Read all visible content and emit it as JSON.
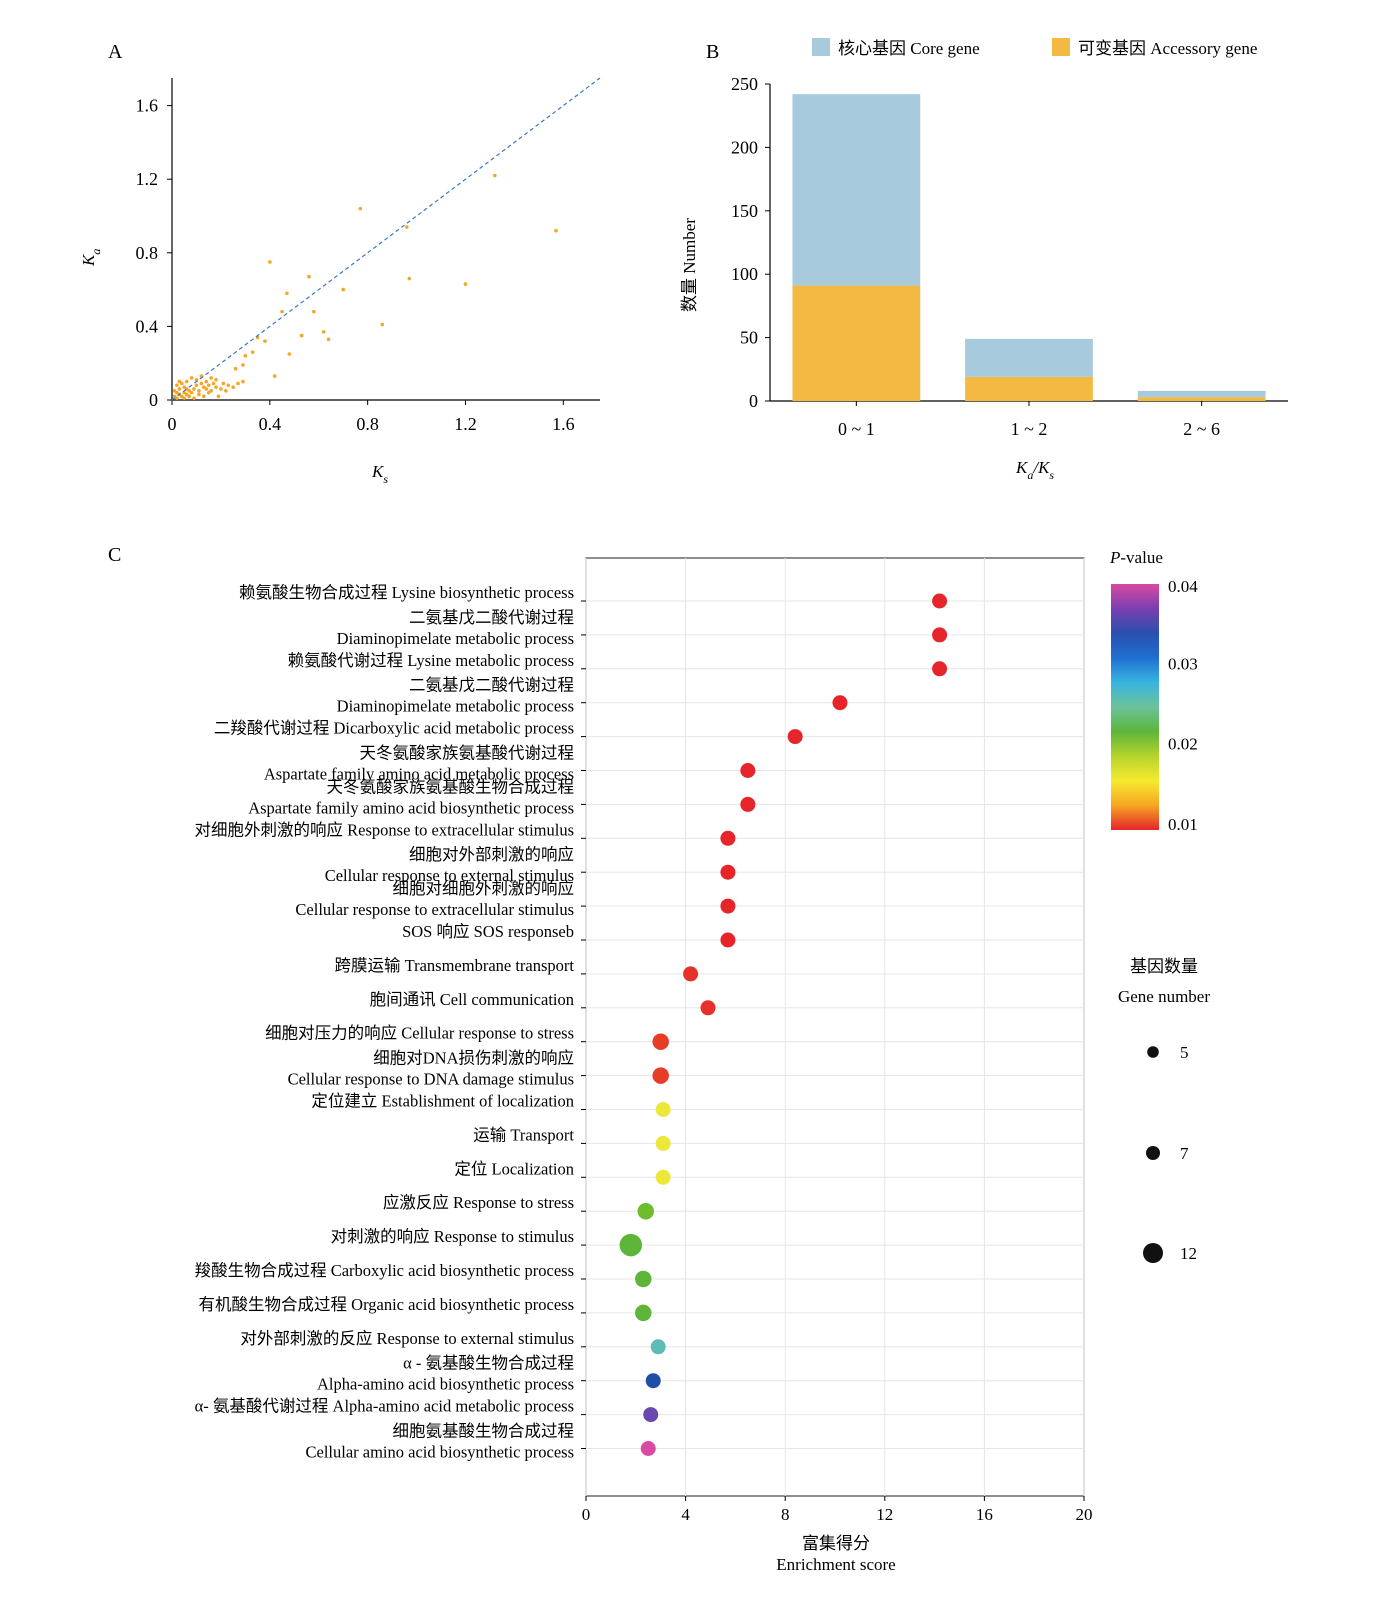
{
  "panels": {
    "a": "A",
    "b": "B",
    "c": "C"
  },
  "chart_data": [
    {
      "id": "A",
      "type": "scatter",
      "xlabel": "K",
      "xlabel_sub": "s",
      "ylabel": "K",
      "ylabel_sub": "a",
      "xlim": [
        0,
        1.75
      ],
      "ylim": [
        0,
        1.75
      ],
      "xticks": [
        "0",
        "0.4",
        "0.8",
        "1.2",
        "1.6"
      ],
      "xtick_values": [
        0,
        0.4,
        0.8,
        1.2,
        1.6
      ],
      "yticks": [
        "0",
        "0.4",
        "0.8",
        "1.2",
        "1.6"
      ],
      "ytick_values": [
        0,
        0.4,
        0.8,
        1.2,
        1.6
      ],
      "point_color": "#f5a623",
      "line_color": "#3a78c2",
      "reference_line": "y = x",
      "points": [
        [
          0.01,
          0.02
        ],
        [
          0.02,
          0.01
        ],
        [
          0.03,
          0.03
        ],
        [
          0.04,
          0.02
        ],
        [
          0.05,
          0.04
        ],
        [
          0.06,
          0.03
        ],
        [
          0.07,
          0.05
        ],
        [
          0.02,
          0.04
        ],
        [
          0.03,
          0.06
        ],
        [
          0.05,
          0.07
        ],
        [
          0.08,
          0.04
        ],
        [
          0.09,
          0.06
        ],
        [
          0.1,
          0.08
        ],
        [
          0.11,
          0.05
        ],
        [
          0.12,
          0.09
        ],
        [
          0.13,
          0.07
        ],
        [
          0.14,
          0.1
        ],
        [
          0.15,
          0.08
        ],
        [
          0.16,
          0.12
        ],
        [
          0.17,
          0.09
        ],
        [
          0.18,
          0.11
        ],
        [
          0.04,
          0.09
        ],
        [
          0.06,
          0.1
        ],
        [
          0.08,
          0.12
        ],
        [
          0.1,
          0.11
        ],
        [
          0.12,
          0.13
        ],
        [
          0.07,
          0.02
        ],
        [
          0.09,
          0.01
        ],
        [
          0.11,
          0.03
        ],
        [
          0.13,
          0.02
        ],
        [
          0.15,
          0.04
        ],
        [
          0.01,
          0.05
        ],
        [
          0.02,
          0.08
        ],
        [
          0.03,
          0.1
        ],
        [
          0.05,
          0.01
        ],
        [
          0.06,
          0.06
        ],
        [
          0.14,
          0.06
        ],
        [
          0.16,
          0.05
        ],
        [
          0.18,
          0.07
        ],
        [
          0.2,
          0.06
        ],
        [
          0.22,
          0.05
        ],
        [
          0.19,
          0.02
        ],
        [
          0.21,
          0.09
        ],
        [
          0.23,
          0.08
        ],
        [
          0.25,
          0.07
        ],
        [
          0.27,
          0.09
        ],
        [
          0.29,
          0.1
        ],
        [
          0.26,
          0.17
        ],
        [
          0.29,
          0.19
        ],
        [
          0.3,
          0.24
        ],
        [
          0.33,
          0.26
        ],
        [
          0.35,
          0.34
        ],
        [
          0.38,
          0.32
        ],
        [
          0.42,
          0.13
        ],
        [
          0.45,
          0.48
        ],
        [
          0.47,
          0.58
        ],
        [
          0.48,
          0.25
        ],
        [
          0.4,
          0.75
        ],
        [
          0.53,
          0.35
        ],
        [
          0.56,
          0.67
        ],
        [
          0.58,
          0.48
        ],
        [
          0.62,
          0.37
        ],
        [
          0.64,
          0.33
        ],
        [
          0.7,
          0.6
        ],
        [
          0.77,
          1.04
        ],
        [
          0.86,
          0.41
        ],
        [
          0.96,
          0.94
        ],
        [
          0.97,
          0.66
        ],
        [
          1.2,
          0.63
        ],
        [
          1.32,
          1.22
        ],
        [
          1.57,
          0.92
        ]
      ]
    },
    {
      "id": "B",
      "type": "bar",
      "stacked": true,
      "categories": [
        "0 ~ 1",
        "1 ~ 2",
        "2 ~ 6"
      ],
      "series": [
        {
          "name": "可变基因 Accessory gene",
          "color": "#f4b942",
          "values": [
            91,
            19,
            3
          ]
        },
        {
          "name": "核心基因 Core gene",
          "color": "#a7cbdd",
          "values": [
            151,
            30,
            5
          ]
        }
      ],
      "legend_order": [
        1,
        0
      ],
      "legend_position": "top",
      "ylim": [
        0,
        250
      ],
      "yticks": [
        "0",
        "50",
        "100",
        "150",
        "200",
        "250"
      ],
      "ytick_values": [
        0,
        50,
        100,
        150,
        200,
        250
      ],
      "xlabel": "K",
      "xlabel_sub1": "a",
      "xlabel_mid": "/K",
      "xlabel_sub2": "s",
      "ylabel": "数量 Number"
    },
    {
      "id": "C",
      "type": "scatter",
      "subtype": "bubble",
      "xlim": [
        0,
        20
      ],
      "xticks": [
        "0",
        "4",
        "8",
        "12",
        "16",
        "20"
      ],
      "xtick_values": [
        0,
        4,
        8,
        12,
        16,
        20
      ],
      "xlabel_zh": "富集得分",
      "xlabel_en": "Enrichment score",
      "grid": true,
      "terms": [
        {
          "label": [
            "赖氨酸生物合成过程 Lysine biosynthetic process"
          ],
          "x": 14.2,
          "color": "#e5252a",
          "size": 7
        },
        {
          "label": [
            "二氨基戊二酸代谢过程",
            "Diaminopimelate metabolic process"
          ],
          "x": 14.2,
          "color": "#e5252a",
          "size": 7
        },
        {
          "label": [
            "赖氨酸代谢过程 Lysine metabolic process"
          ],
          "x": 14.2,
          "color": "#e5252a",
          "size": 7
        },
        {
          "label": [
            "二氨基戊二酸代谢过程",
            "Diaminopimelate metabolic process"
          ],
          "x": 10.2,
          "color": "#e5252a",
          "size": 7
        },
        {
          "label": [
            "二羧酸代谢过程 Dicarboxylic acid metabolic process"
          ],
          "x": 8.4,
          "color": "#e5252a",
          "size": 7
        },
        {
          "label": [
            "天冬氨酸家族氨基酸代谢过程",
            "Aspartate family amino acid metabolic process"
          ],
          "x": 6.5,
          "color": "#e5252a",
          "size": 7
        },
        {
          "label": [
            "天冬氨酸家族氨基酸生物合成过程",
            "Aspartate family amino acid biosynthetic process"
          ],
          "x": 6.5,
          "color": "#e5252a",
          "size": 7
        },
        {
          "label": [
            "对细胞外刺激的响应 Response to extracellular stimulus"
          ],
          "x": 5.7,
          "color": "#e5252a",
          "size": 7
        },
        {
          "label": [
            "细胞对外部刺激的响应",
            "Cellular response to external stimulus"
          ],
          "x": 5.7,
          "color": "#e5252a",
          "size": 7
        },
        {
          "label": [
            "细胞对细胞外刺激的响应",
            "Cellular response to extracellular stimulus"
          ],
          "x": 5.7,
          "color": "#e5252a",
          "size": 7
        },
        {
          "label": [
            "SOS 响应 SOS responseb"
          ],
          "x": 5.7,
          "color": "#e5252a",
          "size": 7
        },
        {
          "label": [
            "跨膜运输 Transmembrane transport"
          ],
          "x": 4.2,
          "color": "#e6302a",
          "size": 7
        },
        {
          "label": [
            "胞间通讯 Cell communication"
          ],
          "x": 4.9,
          "color": "#e6302a",
          "size": 7
        },
        {
          "label": [
            "细胞对压力的响应 Cellular response to stress"
          ],
          "x": 3.0,
          "color": "#e73c25",
          "size": 8
        },
        {
          "label": [
            "细胞对DNA损伤刺激的响应",
            "Cellular response to DNA damage stimulus"
          ],
          "x": 3.0,
          "color": "#e73c25",
          "size": 8
        },
        {
          "label": [
            "定位建立 Establishment of localization"
          ],
          "x": 3.1,
          "color": "#ece83a",
          "size": 7
        },
        {
          "label": [
            "运输 Transport"
          ],
          "x": 3.1,
          "color": "#ece83a",
          "size": 7
        },
        {
          "label": [
            "定位 Localization"
          ],
          "x": 3.1,
          "color": "#ece83a",
          "size": 7
        },
        {
          "label": [
            "应激反应 Response to stress"
          ],
          "x": 2.4,
          "color": "#6dbd2e",
          "size": 8
        },
        {
          "label": [
            "对刺激的响应 Response to stimulus"
          ],
          "x": 1.8,
          "color": "#5db63a",
          "size": 12
        },
        {
          "label": [
            "羧酸生物合成过程 Carboxylic acid biosynthetic process"
          ],
          "x": 2.3,
          "color": "#5db63a",
          "size": 8
        },
        {
          "label": [
            "有机酸生物合成过程 Organic acid biosynthetic process"
          ],
          "x": 2.3,
          "color": "#5db63a",
          "size": 8
        },
        {
          "label": [
            "对外部刺激的反应 Response to external stimulus"
          ],
          "x": 2.9,
          "color": "#5bbdb5",
          "size": 7
        },
        {
          "label": [
            "α - 氨基酸生物合成过程",
            "Alpha-amino acid biosynthetic process"
          ],
          "x": 2.7,
          "color": "#1f4ea6",
          "size": 7
        },
        {
          "label": [
            "α- 氨基酸代谢过程 Alpha-amino acid metabolic process"
          ],
          "x": 2.6,
          "color": "#6a48b2",
          "size": 7
        },
        {
          "label": [
            "细胞氨基酸生物合成过程",
            "Cellular amino acid biosynthetic process"
          ],
          "x": 2.5,
          "color": "#d94aa2",
          "size": 7
        }
      ],
      "colorbar": {
        "title": "P",
        "title_suffix": "-value",
        "ticks": [
          "0.04",
          "0.03",
          "0.02",
          "0.01"
        ],
        "stops": [
          "#d94aa2",
          "#7a3fb0",
          "#2a4fb0",
          "#1f6fd0",
          "#38b4e0",
          "#6cc29a",
          "#5db63a",
          "#b5d42c",
          "#f6ea2f",
          "#f6a623",
          "#e5252a"
        ]
      },
      "size_legend": {
        "title_zh": "基因数量",
        "title_en": "Gene number",
        "items": [
          {
            "label": "5",
            "value": 5
          },
          {
            "label": "7",
            "value": 7
          },
          {
            "label": "12",
            "value": 12
          }
        ]
      }
    }
  ]
}
